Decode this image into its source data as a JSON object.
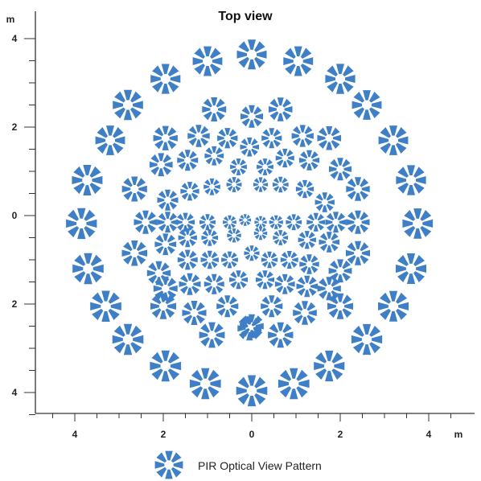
{
  "chart_data": {
    "type": "scatter",
    "title": "Top view",
    "x_unit": "m",
    "y_unit": "m",
    "xlim": [
      -4.9,
      5.0
    ],
    "ylim": [
      -4.5,
      4.4
    ],
    "x_ticks": [
      {
        "value": -4,
        "label": "4"
      },
      {
        "value": -2,
        "label": "2"
      },
      {
        "value": 0,
        "label": "0"
      },
      {
        "value": 2,
        "label": "2"
      },
      {
        "value": 4,
        "label": "4"
      }
    ],
    "y_ticks": [
      {
        "value": 4,
        "label": "4"
      },
      {
        "value": 2,
        "label": "2"
      },
      {
        "value": 0,
        "label": "0"
      },
      {
        "value": -2,
        "label": "2"
      },
      {
        "value": -4,
        "label": "4"
      }
    ],
    "marker": "segmented-octagon",
    "color": "#3f7fc6",
    "legend": {
      "label": "PIR Optical View Pattern",
      "position": "bottom-center"
    },
    "series": [
      {
        "points": [
          [
            0.0,
            3.64
          ],
          [
            1.05,
            3.49
          ],
          [
            -1.0,
            3.49
          ],
          [
            2.0,
            3.09
          ],
          [
            -1.95,
            3.09
          ],
          [
            -2.8,
            2.5
          ],
          [
            2.6,
            2.5
          ],
          [
            -3.2,
            1.7
          ],
          [
            3.2,
            1.7
          ],
          [
            -3.72,
            0.8
          ],
          [
            3.6,
            0.8
          ],
          [
            -3.85,
            -0.18
          ],
          [
            3.75,
            -0.18
          ],
          [
            -3.7,
            -1.2
          ],
          [
            3.6,
            -1.2
          ],
          [
            -3.3,
            -2.05
          ],
          [
            3.2,
            -2.05
          ],
          [
            -2.8,
            -2.8
          ],
          [
            2.6,
            -2.8
          ],
          [
            -1.95,
            -3.4
          ],
          [
            1.75,
            -3.4
          ],
          [
            -1.05,
            -3.8
          ],
          [
            0.95,
            -3.8
          ],
          [
            0.0,
            -3.96
          ],
          [
            -0.85,
            2.4
          ],
          [
            0.0,
            2.24
          ],
          [
            0.65,
            2.4
          ],
          [
            -1.95,
            1.75
          ],
          [
            -1.2,
            1.8
          ],
          [
            -0.55,
            1.75
          ],
          [
            0.45,
            1.75
          ],
          [
            1.15,
            1.8
          ],
          [
            1.75,
            1.75
          ],
          [
            -0.05,
            1.55
          ],
          [
            -2.05,
            1.15
          ],
          [
            -1.45,
            1.25
          ],
          [
            -0.85,
            1.35
          ],
          [
            -0.3,
            1.1
          ],
          [
            0.3,
            1.1
          ],
          [
            0.75,
            1.3
          ],
          [
            1.3,
            1.25
          ],
          [
            2.0,
            1.05
          ],
          [
            -2.65,
            0.6
          ],
          [
            -1.9,
            0.35
          ],
          [
            -1.4,
            0.55
          ],
          [
            -0.9,
            0.65
          ],
          [
            -0.4,
            0.7
          ],
          [
            0.2,
            0.7
          ],
          [
            0.65,
            0.7
          ],
          [
            1.2,
            0.6
          ],
          [
            1.65,
            0.3
          ],
          [
            2.4,
            0.6
          ],
          [
            -2.4,
            -0.15
          ],
          [
            -1.9,
            -0.15
          ],
          [
            -1.5,
            -0.15
          ],
          [
            -1.0,
            -0.15
          ],
          [
            -0.5,
            -0.15
          ],
          [
            -0.15,
            -0.1
          ],
          [
            0.2,
            -0.15
          ],
          [
            0.55,
            -0.15
          ],
          [
            0.95,
            -0.15
          ],
          [
            1.45,
            -0.15
          ],
          [
            1.9,
            -0.15
          ],
          [
            2.4,
            -0.15
          ],
          [
            -2.65,
            -0.85
          ],
          [
            -1.95,
            -0.65
          ],
          [
            -1.45,
            -0.5
          ],
          [
            -0.95,
            -0.5
          ],
          [
            -0.4,
            -0.45
          ],
          [
            0.2,
            -0.4
          ],
          [
            0.65,
            -0.5
          ],
          [
            1.25,
            -0.55
          ],
          [
            1.75,
            -0.6
          ],
          [
            2.4,
            -0.85
          ],
          [
            -2.1,
            -1.3
          ],
          [
            -1.45,
            -1.0
          ],
          [
            -0.95,
            -1.0
          ],
          [
            -0.5,
            -1.0
          ],
          [
            0.0,
            -0.85
          ],
          [
            0.4,
            -1.0
          ],
          [
            0.85,
            -1.0
          ],
          [
            1.3,
            -1.1
          ],
          [
            2.0,
            -1.25
          ],
          [
            -1.95,
            -1.65
          ],
          [
            -1.4,
            -1.55
          ],
          [
            -0.85,
            -1.55
          ],
          [
            -0.3,
            -1.45
          ],
          [
            0.3,
            -1.45
          ],
          [
            0.75,
            -1.55
          ],
          [
            1.25,
            -1.6
          ],
          [
            1.75,
            -1.65
          ],
          [
            -2.0,
            -2.05
          ],
          [
            -1.3,
            -2.2
          ],
          [
            -0.55,
            -2.05
          ],
          [
            0.45,
            -2.05
          ],
          [
            1.2,
            -2.2
          ],
          [
            2.0,
            -2.05
          ],
          [
            -0.9,
            -2.7
          ],
          [
            -0.05,
            -2.55
          ],
          [
            0.65,
            -2.7
          ],
          [
            0.0,
            -2.5
          ]
        ]
      }
    ]
  }
}
